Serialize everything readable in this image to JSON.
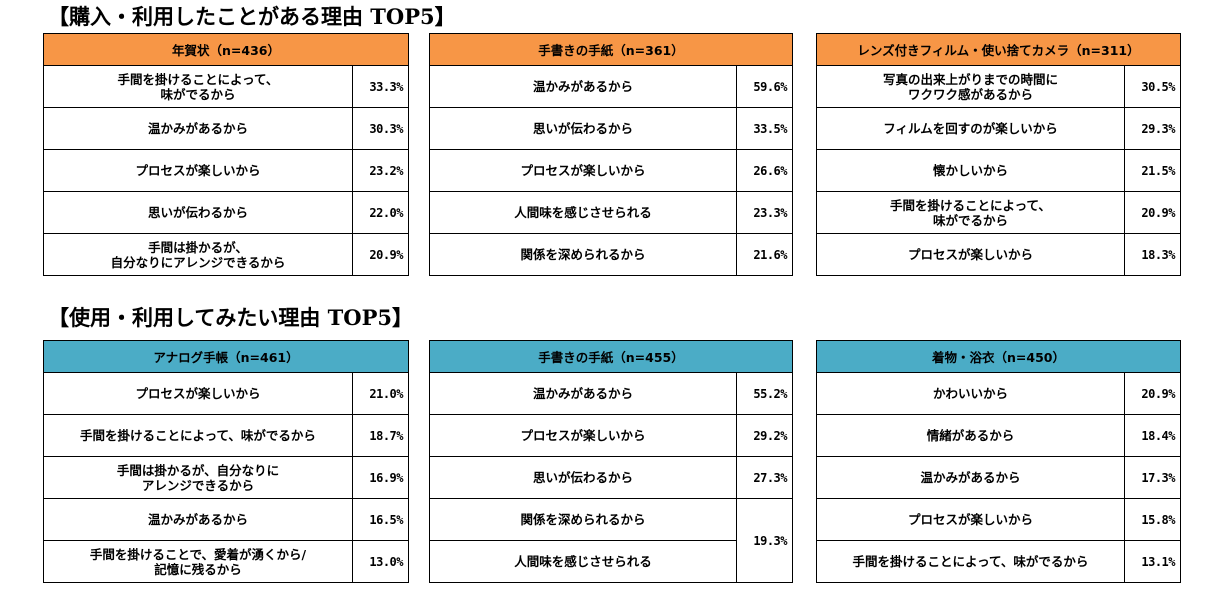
{
  "colors": {
    "header_orange": "#F79646",
    "header_blue": "#4BACC6"
  },
  "sections": [
    {
      "title": "【購入・利用したことがある理由 TOP5】",
      "tables": [
        {
          "header": "年賀状（n=436）",
          "rows": [
            {
              "reason": "手間を掛けることによって、\n味がでるから",
              "pct": "33.3%"
            },
            {
              "reason": "温かみがあるから",
              "pct": "30.3%"
            },
            {
              "reason": "プロセスが楽しいから",
              "pct": "23.2%"
            },
            {
              "reason": "思いが伝わるから",
              "pct": "22.0%"
            },
            {
              "reason": "手間は掛かるが、\n自分なりにアレンジできるから",
              "pct": "20.9%"
            }
          ]
        },
        {
          "header": "手書きの手紙（n=361）",
          "rows": [
            {
              "reason": "温かみがあるから",
              "pct": "59.6%"
            },
            {
              "reason": "思いが伝わるから",
              "pct": "33.5%"
            },
            {
              "reason": "プロセスが楽しいから",
              "pct": "26.6%"
            },
            {
              "reason": "人間味を感じさせられる",
              "pct": "23.3%"
            },
            {
              "reason": "関係を深められるから",
              "pct": "21.6%"
            }
          ]
        },
        {
          "header": "レンズ付きフィルム・使い捨てカメラ（n=311）",
          "rows": [
            {
              "reason": "写真の出来上がりまでの時間に\nワクワク感があるから",
              "pct": "30.5%"
            },
            {
              "reason": "フィルムを回すのが楽しいから",
              "pct": "29.3%"
            },
            {
              "reason": "懐かしいから",
              "pct": "21.5%"
            },
            {
              "reason": "手間を掛けることによって、\n味がでるから",
              "pct": "20.9%"
            },
            {
              "reason": "プロセスが楽しいから",
              "pct": "18.3%"
            }
          ]
        }
      ]
    },
    {
      "title": "【使用・利用してみたい理由 TOP5】",
      "tables": [
        {
          "header": "アナログ手帳（n=461）",
          "rows": [
            {
              "reason": "プロセスが楽しいから",
              "pct": "21.0%"
            },
            {
              "reason": "手間を掛けることによって、味がでるから",
              "pct": "18.7%"
            },
            {
              "reason": "手間は掛かるが、自分なりに\nアレンジできるから",
              "pct": "16.9%"
            },
            {
              "reason": "温かみがあるから",
              "pct": "16.5%"
            },
            {
              "reason": "手間を掛けることで、愛着が湧くから/\n記憶に残るから",
              "pct": "13.0%"
            }
          ]
        },
        {
          "header": "手書きの手紙（n=455）",
          "rows": [
            {
              "reason": "温かみがあるから",
              "pct": "55.2%"
            },
            {
              "reason": "プロセスが楽しいから",
              "pct": "29.2%"
            },
            {
              "reason": "思いが伝わるから",
              "pct": "27.3%"
            },
            {
              "reason": "関係を深められるから",
              "pct": "19.3%"
            },
            {
              "reason": "人間味を感じさせられる",
              "pct": ""
            }
          ]
        },
        {
          "header": "着物・浴衣（n=450）",
          "rows": [
            {
              "reason": "かわいいから",
              "pct": "20.9%"
            },
            {
              "reason": "情緒があるから",
              "pct": "18.4%"
            },
            {
              "reason": "温かみがあるから",
              "pct": "17.3%"
            },
            {
              "reason": "プロセスが楽しいから",
              "pct": "15.8%"
            },
            {
              "reason": "手間を掛けることによって、味がでるから",
              "pct": "13.1%"
            }
          ]
        }
      ]
    }
  ]
}
